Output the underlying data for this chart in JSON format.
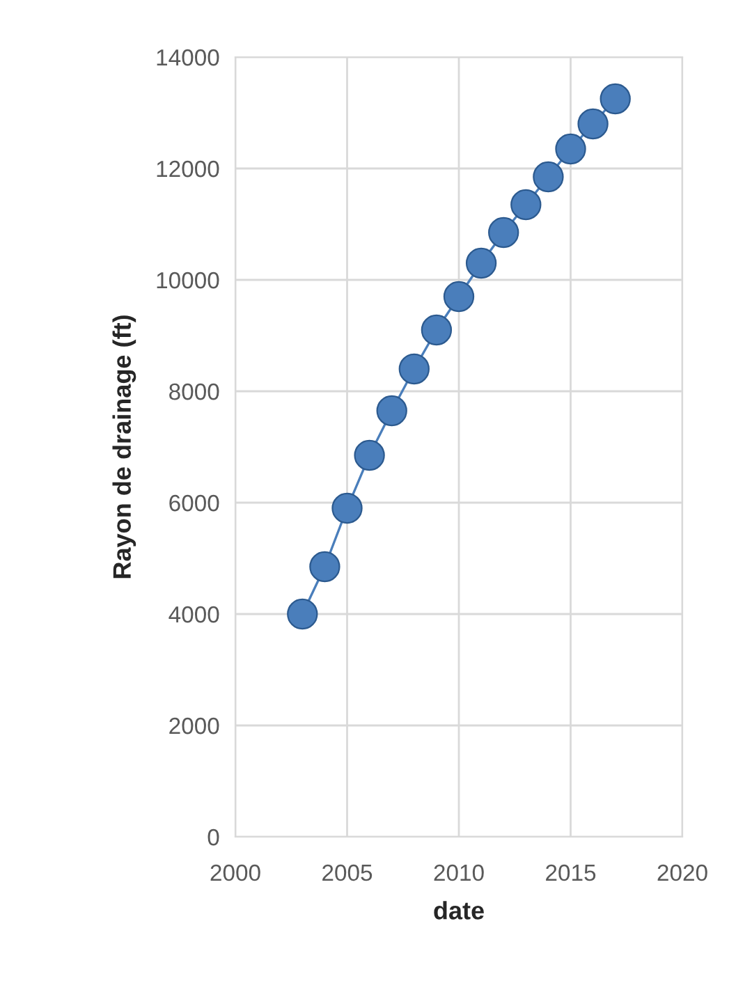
{
  "chart_data": {
    "type": "line",
    "xlabel": "date",
    "ylabel": "Rayon de drainage (ft)",
    "x": [
      2003,
      2004,
      2005,
      2006,
      2007,
      2008,
      2009,
      2010,
      2011,
      2012,
      2013,
      2014,
      2015,
      2016,
      2017
    ],
    "series": [
      {
        "color": "#4a7ebb",
        "values": [
          4000,
          4850,
          5900,
          6850,
          7650,
          8400,
          9100,
          9700,
          10300,
          10850,
          11350,
          11850,
          12350,
          12800,
          13250
        ]
      }
    ],
    "line_style": "solid",
    "marker": "circle",
    "xlim": [
      2000,
      2020
    ],
    "xticks": [
      2000,
      2005,
      2010,
      2015,
      2020
    ],
    "ylim": [
      0,
      14000
    ],
    "yticks": [
      0,
      2000,
      4000,
      6000,
      8000,
      10000,
      12000,
      14000
    ],
    "grid": true,
    "legend": false
  }
}
